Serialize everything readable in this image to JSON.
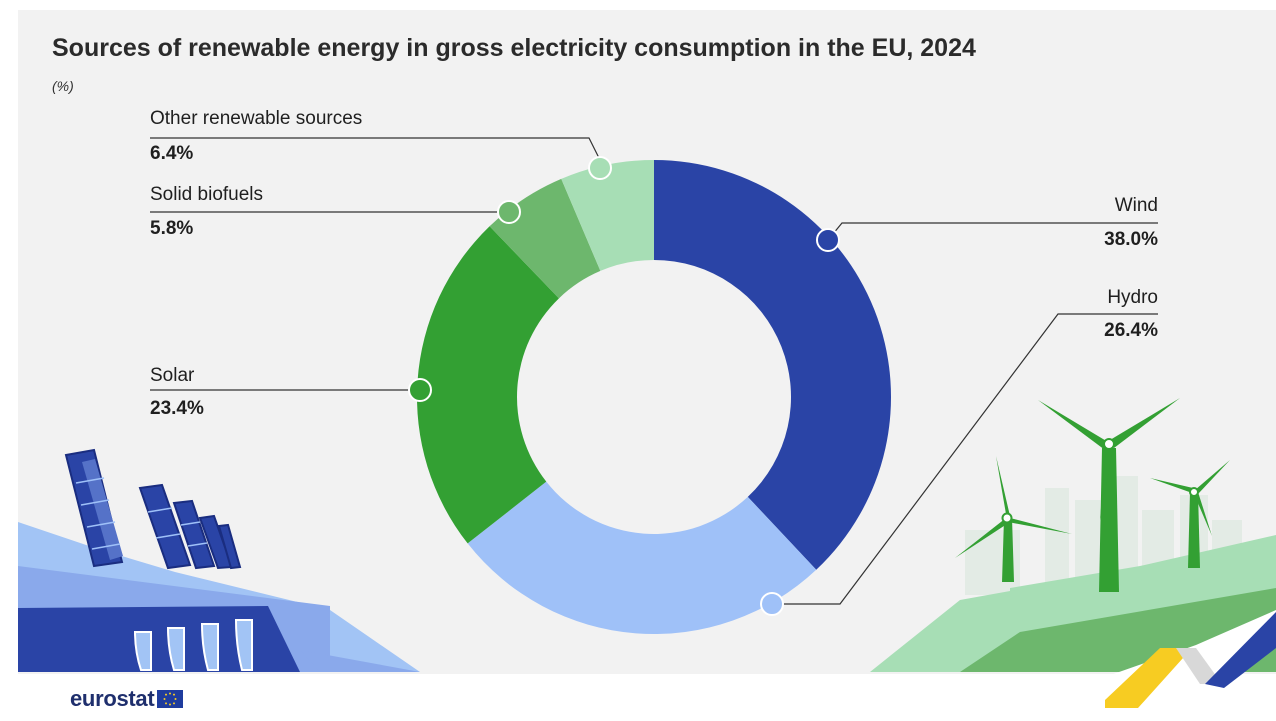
{
  "title": "Sources of renewable energy in gross electricity consumption in the EU, 2024",
  "unit": "(%)",
  "brand": {
    "name": "eurostat",
    "flag_icon": "eu-flag-icon"
  },
  "chart_data": {
    "type": "pie",
    "variant": "donut",
    "title": "Sources of renewable energy in gross electricity consumption in the EU, 2024",
    "unit": "(%)",
    "slices": [
      {
        "label": "Wind",
        "value": 38.0,
        "value_label": "38.0%",
        "color": "#2a44a6"
      },
      {
        "label": "Hydro",
        "value": 26.4,
        "value_label": "26.4%",
        "color": "#9fc1f8"
      },
      {
        "label": "Solar",
        "value": 23.4,
        "value_label": "23.4%",
        "color": "#33a033"
      },
      {
        "label": "Solid biofuels",
        "value": 5.8,
        "value_label": "5.8%",
        "color": "#6db76d"
      },
      {
        "label": "Other renewable sources",
        "value": 6.4,
        "value_label": "6.4%",
        "color": "#a7deb5"
      }
    ],
    "start_angle": "12 o'clock",
    "direction": "clockwise",
    "legend": "none (direct labels)"
  }
}
